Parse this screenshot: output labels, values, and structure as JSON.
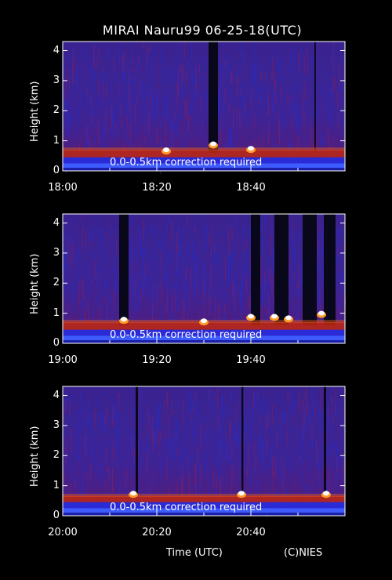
{
  "title": "MIRAI Nauru99 06-25-18(UTC)",
  "correction_note": "0.0-0.5km correction required",
  "xlabel": "Time (UTC)",
  "credit": "(C)NIES",
  "chart_data": [
    {
      "type": "heatmap",
      "ylabel": "Height (km)",
      "yticks": [
        "0",
        "1",
        "2",
        "3",
        "4"
      ],
      "ylim": [
        0,
        4.3
      ],
      "xticks": [
        "18:00",
        "18:20",
        "18:40"
      ],
      "xlim_minutes": [
        0,
        60
      ],
      "layer_top_km": 0.7,
      "cloud_tops_km": [
        {
          "t": 22,
          "h": 0.7
        },
        {
          "t": 32,
          "h": 0.9
        },
        {
          "t": 40,
          "h": 0.75
        }
      ],
      "dark_gaps_min": [
        [
          31,
          33
        ],
        [
          53.5,
          53.8
        ]
      ]
    },
    {
      "type": "heatmap",
      "ylabel": "Height (km)",
      "yticks": [
        "0",
        "1",
        "2",
        "3",
        "4"
      ],
      "ylim": [
        0,
        4.3
      ],
      "xticks": [
        "19:00",
        "19:20",
        "19:40"
      ],
      "xlim_minutes": [
        0,
        60
      ],
      "layer_top_km": 0.7,
      "cloud_tops_km": [
        {
          "t": 13,
          "h": 0.8
        },
        {
          "t": 30,
          "h": 0.75
        },
        {
          "t": 40,
          "h": 0.9
        },
        {
          "t": 45,
          "h": 0.9
        },
        {
          "t": 48,
          "h": 0.85
        },
        {
          "t": 55,
          "h": 1.0
        }
      ],
      "dark_gaps_min": [
        [
          12,
          14
        ],
        [
          40,
          42
        ],
        [
          45,
          48
        ],
        [
          51,
          54
        ],
        [
          55.5,
          58
        ]
      ]
    },
    {
      "type": "heatmap",
      "ylabel": "Height (km)",
      "yticks": [
        "0",
        "1",
        "2",
        "3",
        "4"
      ],
      "ylim": [
        0,
        4.3
      ],
      "xticks": [
        "20:00",
        "20:20",
        "20:40"
      ],
      "xlim_minutes": [
        0,
        60
      ],
      "layer_top_km": 0.65,
      "cloud_tops_km": [
        {
          "t": 15,
          "h": 0.75
        },
        {
          "t": 38,
          "h": 0.75
        },
        {
          "t": 56,
          "h": 0.75
        }
      ],
      "dark_gaps_min": [
        [
          15.5,
          16
        ],
        [
          38,
          38.4
        ],
        [
          55.5,
          56
        ]
      ]
    }
  ]
}
